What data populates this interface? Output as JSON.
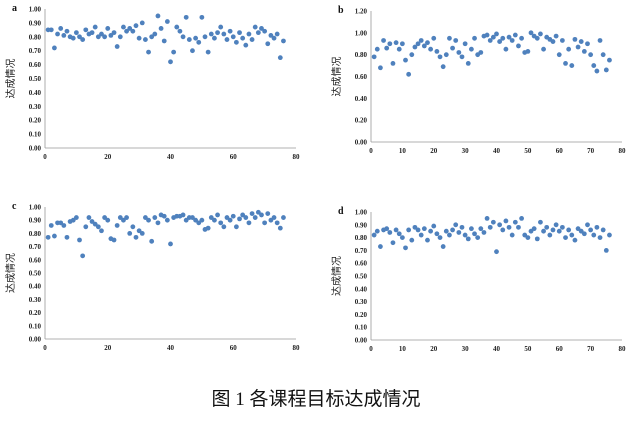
{
  "caption": "图 1 各课程目标达成情况",
  "chart_data": [
    {
      "type": "scatter",
      "panel_label": "a",
      "ylabel": "达成情况",
      "xlim": [
        0,
        80
      ],
      "ylim": [
        0,
        1
      ],
      "x_ticks": [
        "0",
        "20",
        "40",
        "60",
        "80"
      ],
      "y_ticks": [
        "0.00",
        "0.10",
        "0.20",
        "0.30",
        "0.40",
        "0.50",
        "0.60",
        "0.70",
        "0.80",
        "0.90",
        "1.00"
      ],
      "grid": false,
      "color": "#4f81bd",
      "x": [
        1,
        2,
        3,
        4,
        5,
        6,
        7,
        8,
        9,
        10,
        11,
        12,
        13,
        14,
        15,
        16,
        17,
        18,
        19,
        20,
        21,
        22,
        23,
        24,
        25,
        26,
        27,
        28,
        29,
        30,
        31,
        32,
        33,
        34,
        35,
        36,
        37,
        38,
        39,
        40,
        41,
        42,
        43,
        44,
        45,
        46,
        47,
        48,
        49,
        50,
        51,
        52,
        53,
        54,
        55,
        56,
        57,
        58,
        59,
        60,
        61,
        62,
        63,
        64,
        65,
        66,
        67,
        68,
        69,
        70,
        71,
        72,
        73,
        74,
        75,
        76
      ],
      "y": [
        0.85,
        0.85,
        0.72,
        0.82,
        0.86,
        0.81,
        0.84,
        0.8,
        0.79,
        0.83,
        0.8,
        0.78,
        0.85,
        0.82,
        0.83,
        0.87,
        0.8,
        0.82,
        0.8,
        0.86,
        0.81,
        0.83,
        0.73,
        0.8,
        0.87,
        0.84,
        0.86,
        0.84,
        0.88,
        0.79,
        0.9,
        0.78,
        0.69,
        0.8,
        0.82,
        0.95,
        0.86,
        0.77,
        0.91,
        0.62,
        0.69,
        0.87,
        0.84,
        0.8,
        0.94,
        0.78,
        0.7,
        0.79,
        0.76,
        0.94,
        0.8,
        0.69,
        0.82,
        0.79,
        0.83,
        0.87,
        0.82,
        0.78,
        0.84,
        0.8,
        0.76,
        0.83,
        0.79,
        0.74,
        0.82,
        0.78,
        0.87,
        0.83,
        0.86,
        0.84,
        0.75,
        0.81,
        0.79,
        0.82,
        0.65,
        0.77
      ]
    },
    {
      "type": "scatter",
      "panel_label": "b",
      "ylabel": "达成情况",
      "xlim": [
        0,
        80
      ],
      "ylim": [
        0,
        1.2
      ],
      "x_ticks": [
        "0",
        "10",
        "20",
        "30",
        "40",
        "50",
        "60",
        "70",
        "80"
      ],
      "y_ticks": [
        "0.00",
        "0.20",
        "0.40",
        "0.60",
        "0.80",
        "1.00",
        "1.20"
      ],
      "grid": false,
      "color": "#4f81bd",
      "x": [
        1,
        2,
        3,
        4,
        5,
        6,
        7,
        8,
        9,
        10,
        11,
        12,
        13,
        14,
        15,
        16,
        17,
        18,
        19,
        20,
        21,
        22,
        23,
        24,
        25,
        26,
        27,
        28,
        29,
        30,
        31,
        32,
        33,
        34,
        35,
        36,
        37,
        38,
        39,
        40,
        41,
        42,
        43,
        44,
        45,
        46,
        47,
        48,
        49,
        50,
        51,
        52,
        53,
        54,
        55,
        56,
        57,
        58,
        59,
        60,
        61,
        62,
        63,
        64,
        65,
        66,
        67,
        68,
        69,
        70,
        71,
        72,
        73,
        74,
        75,
        76
      ],
      "y": [
        0.78,
        0.85,
        0.68,
        0.93,
        0.86,
        0.9,
        0.72,
        0.91,
        0.85,
        0.9,
        0.75,
        0.62,
        0.8,
        0.87,
        0.9,
        0.93,
        0.88,
        0.91,
        0.85,
        0.95,
        0.83,
        0.78,
        0.69,
        0.8,
        0.95,
        0.86,
        0.93,
        0.82,
        0.78,
        0.9,
        0.72,
        0.85,
        0.95,
        0.8,
        0.82,
        0.97,
        0.98,
        0.93,
        0.96,
        0.99,
        0.92,
        0.95,
        0.85,
        0.96,
        0.93,
        0.98,
        0.88,
        0.95,
        0.82,
        0.83,
        1.0,
        0.97,
        0.95,
        0.99,
        0.85,
        0.96,
        0.94,
        0.92,
        0.97,
        0.8,
        0.93,
        0.72,
        0.85,
        0.7,
        0.94,
        0.87,
        0.92,
        0.83,
        0.9,
        0.8,
        0.7,
        0.65,
        0.93,
        0.8,
        0.66,
        0.75
      ]
    },
    {
      "type": "scatter",
      "panel_label": "c",
      "ylabel": "达成情况",
      "xlim": [
        0,
        80
      ],
      "ylim": [
        0,
        1
      ],
      "x_ticks": [
        "0",
        "20",
        "40",
        "60",
        "80"
      ],
      "y_ticks": [
        "0.00",
        "0.10",
        "0.20",
        "0.30",
        "0.40",
        "0.50",
        "0.60",
        "0.70",
        "0.80",
        "0.90",
        "1.00"
      ],
      "grid": false,
      "color": "#4f81bd",
      "x": [
        1,
        2,
        3,
        4,
        5,
        6,
        7,
        8,
        9,
        10,
        11,
        12,
        13,
        14,
        15,
        16,
        17,
        18,
        19,
        20,
        21,
        22,
        23,
        24,
        25,
        26,
        27,
        28,
        29,
        30,
        31,
        32,
        33,
        34,
        35,
        36,
        37,
        38,
        39,
        40,
        41,
        42,
        43,
        44,
        45,
        46,
        47,
        48,
        49,
        50,
        51,
        52,
        53,
        54,
        55,
        56,
        57,
        58,
        59,
        60,
        61,
        62,
        63,
        64,
        65,
        66,
        67,
        68,
        69,
        70,
        71,
        72,
        73,
        74,
        75,
        76
      ],
      "y": [
        0.77,
        0.86,
        0.78,
        0.88,
        0.88,
        0.86,
        0.77,
        0.89,
        0.9,
        0.92,
        0.75,
        0.63,
        0.85,
        0.92,
        0.89,
        0.87,
        0.85,
        0.82,
        0.92,
        0.9,
        0.76,
        0.75,
        0.86,
        0.92,
        0.9,
        0.92,
        0.8,
        0.85,
        0.77,
        0.82,
        0.8,
        0.92,
        0.9,
        0.74,
        0.92,
        0.88,
        0.94,
        0.93,
        0.9,
        0.72,
        0.92,
        0.93,
        0.93,
        0.94,
        0.9,
        0.92,
        0.92,
        0.9,
        0.88,
        0.9,
        0.83,
        0.84,
        0.92,
        0.9,
        0.94,
        0.88,
        0.85,
        0.92,
        0.9,
        0.93,
        0.85,
        0.91,
        0.94,
        0.92,
        0.88,
        0.95,
        0.92,
        0.96,
        0.94,
        0.88,
        0.95,
        0.9,
        0.92,
        0.88,
        0.84,
        0.92
      ]
    },
    {
      "type": "scatter",
      "panel_label": "d",
      "ylabel": "达成情况",
      "xlim": [
        0,
        80
      ],
      "ylim": [
        0,
        1
      ],
      "x_ticks": [
        "0",
        "10",
        "20",
        "30",
        "40",
        "50",
        "60",
        "70",
        "80"
      ],
      "y_ticks": [
        "0.00",
        "0.10",
        "0.20",
        "0.30",
        "0.40",
        "0.50",
        "0.60",
        "0.70",
        "0.80",
        "0.90",
        "1.00"
      ],
      "grid": false,
      "color": "#4f81bd",
      "x": [
        1,
        2,
        3,
        4,
        5,
        6,
        7,
        8,
        9,
        10,
        11,
        12,
        13,
        14,
        15,
        16,
        17,
        18,
        19,
        20,
        21,
        22,
        23,
        24,
        25,
        26,
        27,
        28,
        29,
        30,
        31,
        32,
        33,
        34,
        35,
        36,
        37,
        38,
        39,
        40,
        41,
        42,
        43,
        44,
        45,
        46,
        47,
        48,
        49,
        50,
        51,
        52,
        53,
        54,
        55,
        56,
        57,
        58,
        59,
        60,
        61,
        62,
        63,
        64,
        65,
        66,
        67,
        68,
        69,
        70,
        71,
        72,
        73,
        74,
        75,
        76
      ],
      "y": [
        0.82,
        0.85,
        0.73,
        0.86,
        0.87,
        0.84,
        0.76,
        0.86,
        0.83,
        0.8,
        0.72,
        0.86,
        0.78,
        0.88,
        0.86,
        0.82,
        0.87,
        0.78,
        0.85,
        0.89,
        0.83,
        0.8,
        0.73,
        0.85,
        0.82,
        0.86,
        0.9,
        0.84,
        0.88,
        0.82,
        0.79,
        0.87,
        0.83,
        0.8,
        0.87,
        0.84,
        0.95,
        0.88,
        0.92,
        0.69,
        0.9,
        0.86,
        0.93,
        0.88,
        0.82,
        0.92,
        0.88,
        0.95,
        0.82,
        0.8,
        0.85,
        0.87,
        0.79,
        0.92,
        0.85,
        0.88,
        0.82,
        0.86,
        0.9,
        0.85,
        0.88,
        0.8,
        0.86,
        0.82,
        0.78,
        0.87,
        0.85,
        0.83,
        0.9,
        0.86,
        0.82,
        0.88,
        0.8,
        0.86,
        0.7,
        0.82
      ]
    }
  ]
}
